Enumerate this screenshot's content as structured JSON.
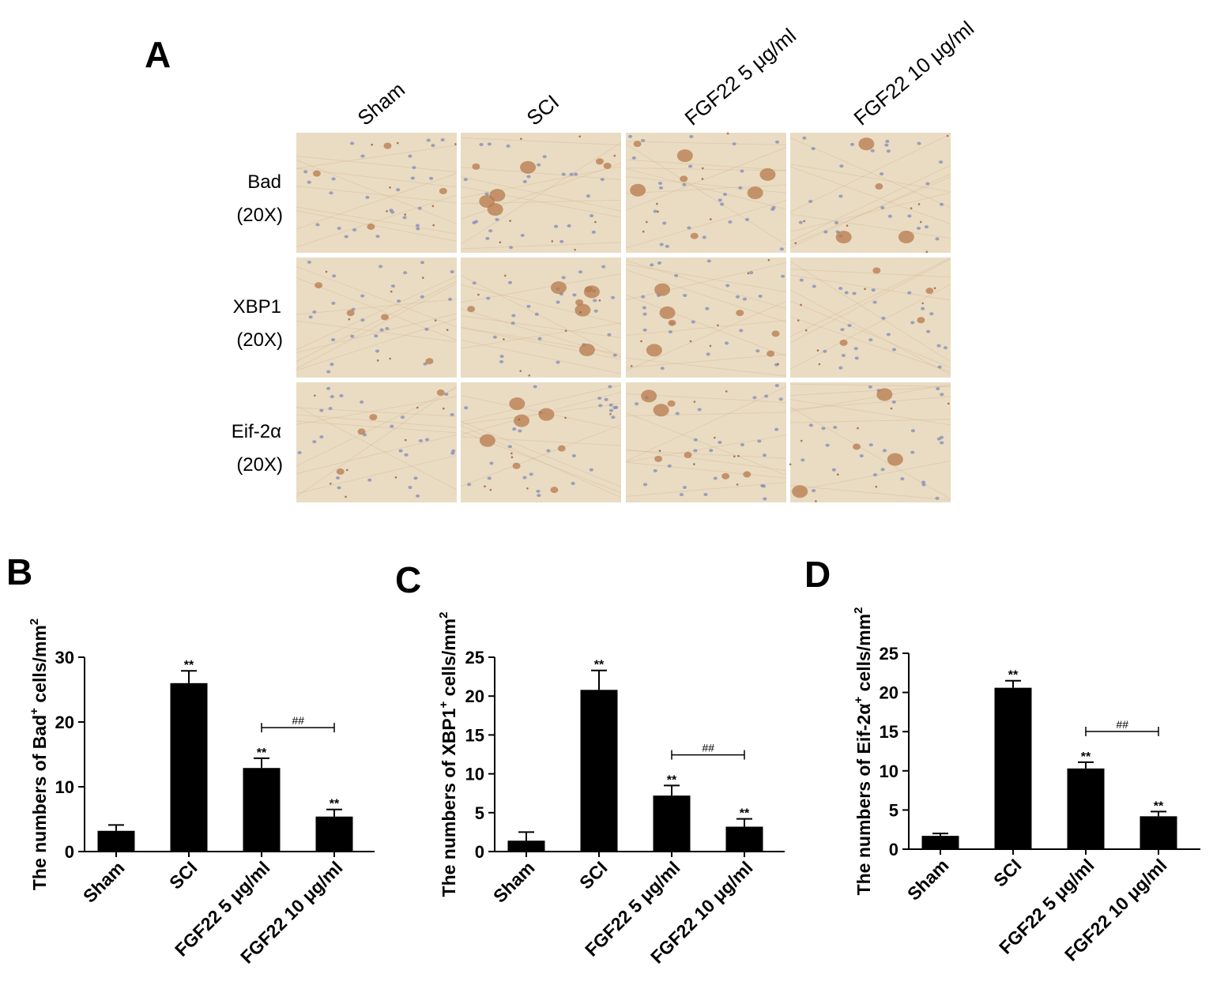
{
  "panel_a": {
    "letter": "A",
    "columns": [
      "Sham",
      "SCI",
      "FGF22 5 μg/ml",
      "FGF22 10 μg/ml"
    ],
    "rows": [
      {
        "name": "Bad",
        "mag": "(20X)"
      },
      {
        "name": "XBP1",
        "mag": "(20X)"
      },
      {
        "name": "Eif-2α",
        "mag": "(20X)"
      }
    ],
    "colors": {
      "tissue": "#e9dcc3",
      "stain_dark": "#b77a4c",
      "stain_light": "#d7b08a",
      "nuclei": "#8790b8",
      "speck": "#9b5a2e"
    }
  },
  "chart_data": [
    {
      "panel": "B",
      "type": "bar",
      "categories": [
        "Sham",
        "SCI",
        "FGF22 5 μg/ml",
        "FGF22 10 μg/ml"
      ],
      "values": [
        3.2,
        26.0,
        12.9,
        5.4
      ],
      "errors": [
        0.9,
        1.9,
        1.5,
        1.1
      ],
      "significance": [
        "",
        "**",
        "**",
        "**"
      ],
      "comparison": {
        "from": 2,
        "to": 3,
        "label": "##"
      },
      "ylabel_pre": "The numbers of Bad",
      "ylabel_sup": "+",
      "ylabel_post": " cells/mm",
      "ylabel_unit_sup": "2",
      "ylim": [
        0,
        30
      ],
      "yticks": [
        0,
        10,
        20,
        30
      ],
      "bar_color": "#000000",
      "grid": false
    },
    {
      "panel": "C",
      "type": "bar",
      "categories": [
        "Sham",
        "SCI",
        "FGF22 5 μg/ml",
        "FGF22 10 μg/ml"
      ],
      "values": [
        1.4,
        20.8,
        7.2,
        3.2
      ],
      "errors": [
        1.1,
        2.5,
        1.3,
        1.0
      ],
      "significance": [
        "",
        "**",
        "**",
        "**"
      ],
      "comparison": {
        "from": 2,
        "to": 3,
        "label": "##"
      },
      "ylabel_pre": "The numbers of XBP1",
      "ylabel_sup": "+",
      "ylabel_post": " cells/mm",
      "ylabel_unit_sup": "2",
      "ylim": [
        0,
        25
      ],
      "yticks": [
        0,
        5,
        10,
        15,
        20,
        25
      ],
      "bar_color": "#000000",
      "grid": false
    },
    {
      "panel": "D",
      "type": "bar",
      "categories": [
        "Sham",
        "SCI",
        "FGF22 5 μg/ml",
        "FGF22 10 μg/ml"
      ],
      "values": [
        1.7,
        20.6,
        10.3,
        4.2
      ],
      "errors": [
        0.3,
        0.9,
        0.8,
        0.6
      ],
      "significance": [
        "",
        "**",
        "**",
        "**"
      ],
      "comparison": {
        "from": 2,
        "to": 3,
        "label": "##"
      },
      "ylabel_pre": "The numbers of Eif-2α",
      "ylabel_sup": "+",
      "ylabel_post": " cells/mm",
      "ylabel_unit_sup": "2",
      "ylim": [
        0,
        25
      ],
      "yticks": [
        0,
        5,
        10,
        15,
        20,
        25
      ],
      "bar_color": "#000000",
      "grid": false
    }
  ]
}
